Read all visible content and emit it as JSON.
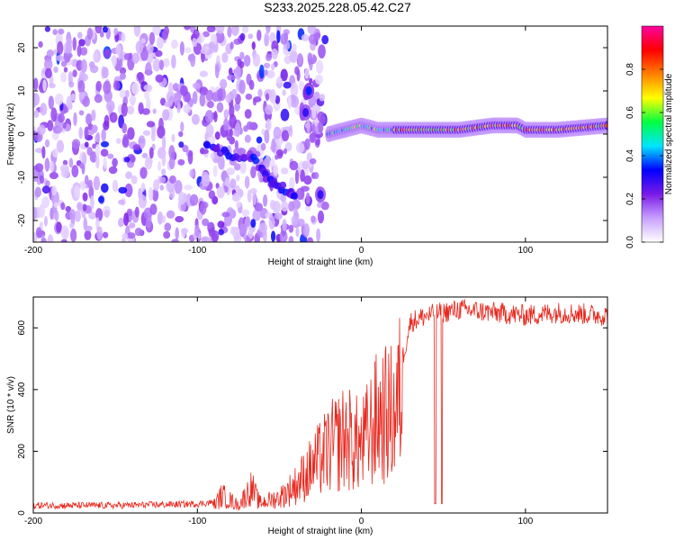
{
  "title": "S233.2025.228.05.42.C27",
  "chart_data": [
    {
      "type": "heatmap",
      "xlabel": "Height of straight line (km)",
      "ylabel": "Frequency (Hz)",
      "xlim": [
        -200,
        150
      ],
      "ylim": [
        -25,
        25
      ],
      "x_ticks": [
        "-200",
        "-100",
        "0",
        "100"
      ],
      "x_tick_values": [
        -200,
        -100,
        0,
        100
      ],
      "y_ticks": [
        "-20",
        "-10",
        "0",
        "10",
        "20"
      ],
      "y_tick_values": [
        -20,
        -10,
        0,
        10,
        20
      ],
      "colorbar": {
        "label": "Normalized spectral amplitude",
        "range": [
          0,
          1
        ],
        "ticks": [
          "0.0",
          "0.2",
          "0.4",
          "0.6",
          "0.8"
        ],
        "tick_values": [
          0.0,
          0.2,
          0.4,
          0.6,
          0.8
        ]
      },
      "colormap": [
        "#ffffff",
        "#c8a0ff",
        "#7a1ae6",
        "#0000ff",
        "#00e5ff",
        "#00ff40",
        "#ffff00",
        "#ff8000",
        "#ff0000",
        "#ff00a0"
      ],
      "features": {
        "noise_region_x": [
          -200,
          -22
        ],
        "noise_amplitude": 0.2,
        "stable_tone": [
          {
            "x": -20,
            "f": 0
          },
          {
            "x": -10,
            "f": 1
          },
          {
            "x": 0,
            "f": 2
          },
          {
            "x": 10,
            "f": 1
          },
          {
            "x": 20,
            "f": 1
          },
          {
            "x": 40,
            "f": 1
          },
          {
            "x": 60,
            "f": 1
          },
          {
            "x": 80,
            "f": 2
          },
          {
            "x": 95,
            "f": 2
          },
          {
            "x": 100,
            "f": 1
          },
          {
            "x": 120,
            "f": 1
          },
          {
            "x": 150,
            "f": 2
          }
        ],
        "descending_track": [
          {
            "x": -95,
            "f": -2
          },
          {
            "x": -80,
            "f": -5
          },
          {
            "x": -65,
            "f": -6
          },
          {
            "x": -55,
            "f": -11
          },
          {
            "x": -45,
            "f": -13
          },
          {
            "x": -40,
            "f": -15
          }
        ],
        "isolated_blobs": [
          {
            "x": -32,
            "f": 10,
            "a": 0.35
          },
          {
            "x": -34,
            "f": 5,
            "a": 0.3
          },
          {
            "x": -25,
            "f": -14,
            "a": 0.3
          }
        ]
      }
    },
    {
      "type": "line",
      "xlabel": "Height of straight line (km)",
      "ylabel": "SNR (10 * v/v)",
      "xlim": [
        -200,
        150
      ],
      "ylim": [
        0,
        700
      ],
      "x_ticks": [
        "-200",
        "-100",
        "0",
        "100"
      ],
      "x_tick_values": [
        -200,
        -100,
        0,
        100
      ],
      "y_ticks": [
        "0",
        "200",
        "400",
        "600"
      ],
      "y_tick_values": [
        0,
        200,
        400,
        600
      ],
      "color": "#e8281e",
      "series": [
        {
          "x": [
            -200,
            -150,
            -100,
            -90,
            -85,
            -75,
            -67,
            -62,
            -50,
            -40,
            -30,
            -20,
            -10,
            0,
            10,
            20,
            25,
            30,
            40,
            50,
            60,
            80,
            100,
            120,
            150
          ],
          "y": [
            20,
            20,
            25,
            30,
            70,
            30,
            100,
            40,
            60,
            110,
            180,
            250,
            300,
            260,
            380,
            390,
            500,
            620,
            640,
            650,
            660,
            650,
            640,
            650,
            640
          ]
        }
      ],
      "dropouts": [
        {
          "x": 45,
          "y": 30
        },
        {
          "x": 49,
          "y": 30
        }
      ]
    }
  ]
}
